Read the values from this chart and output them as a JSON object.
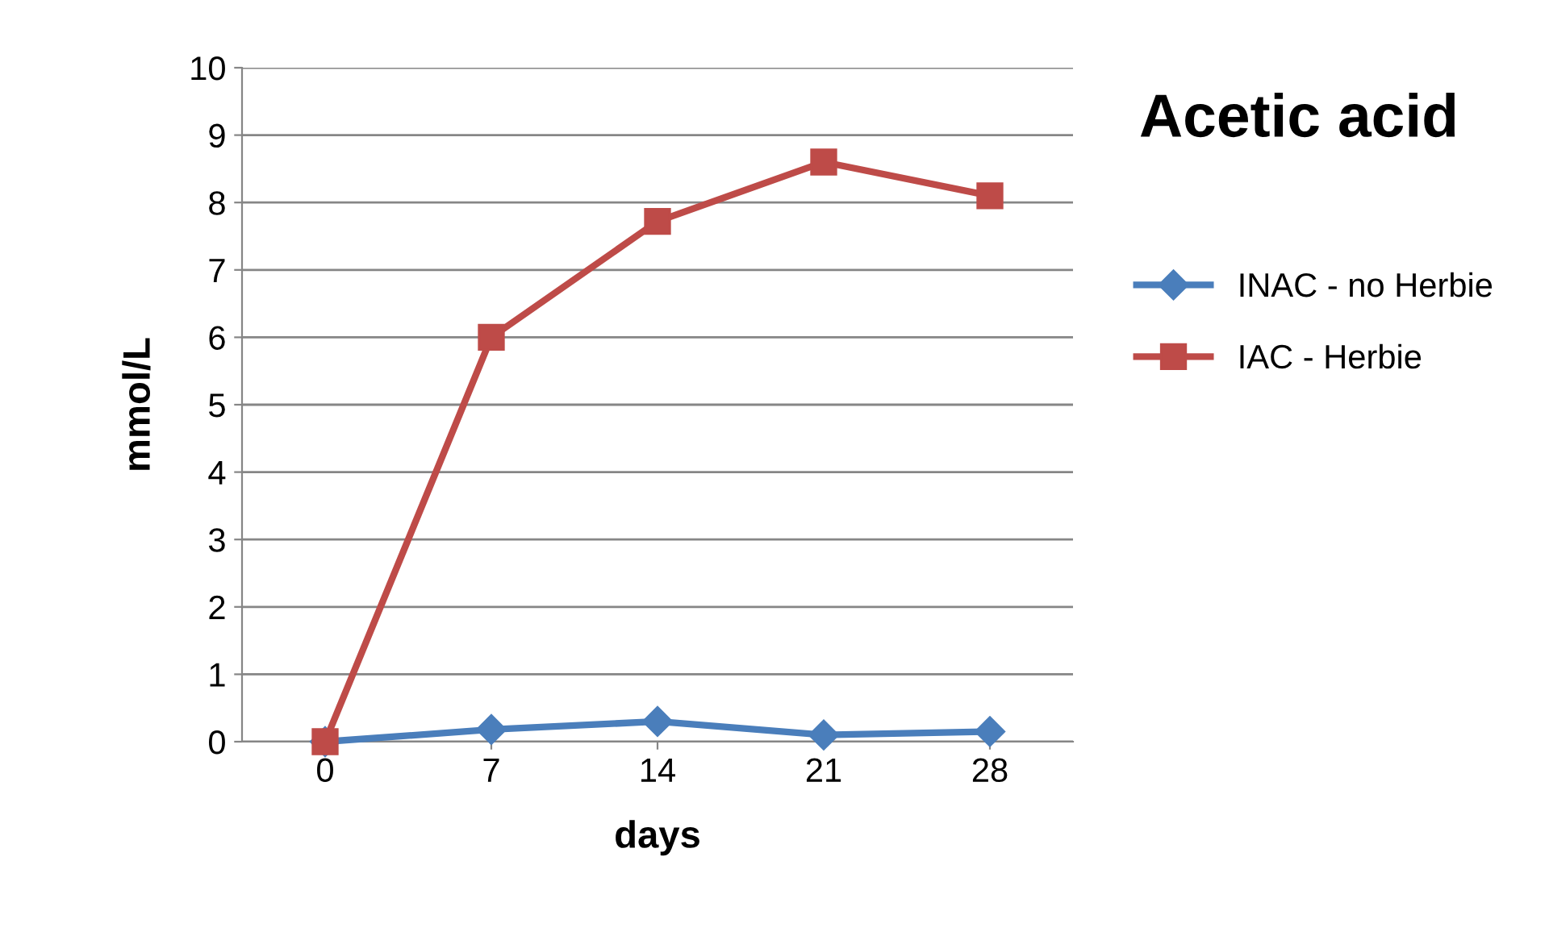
{
  "chart_data": {
    "type": "line",
    "title": "Acetic acid",
    "xlabel": "days",
    "ylabel": "mmol/L",
    "categories": [
      "0",
      "7",
      "14",
      "21",
      "28"
    ],
    "series": [
      {
        "name": "INAC - no Herbie",
        "color": "#4a7ebb",
        "marker": "diamond",
        "values": [
          0,
          0.18,
          0.3,
          0.1,
          0.15
        ]
      },
      {
        "name": "IAC - Herbie",
        "color": "#be4b48",
        "marker": "square",
        "values": [
          0,
          6,
          7.72,
          8.6,
          8.1
        ]
      }
    ],
    "ylim": [
      0,
      10
    ],
    "yticks": [
      0,
      1,
      2,
      3,
      4,
      5,
      6,
      7,
      8,
      9,
      10
    ],
    "grid": "y",
    "legend": "right"
  }
}
